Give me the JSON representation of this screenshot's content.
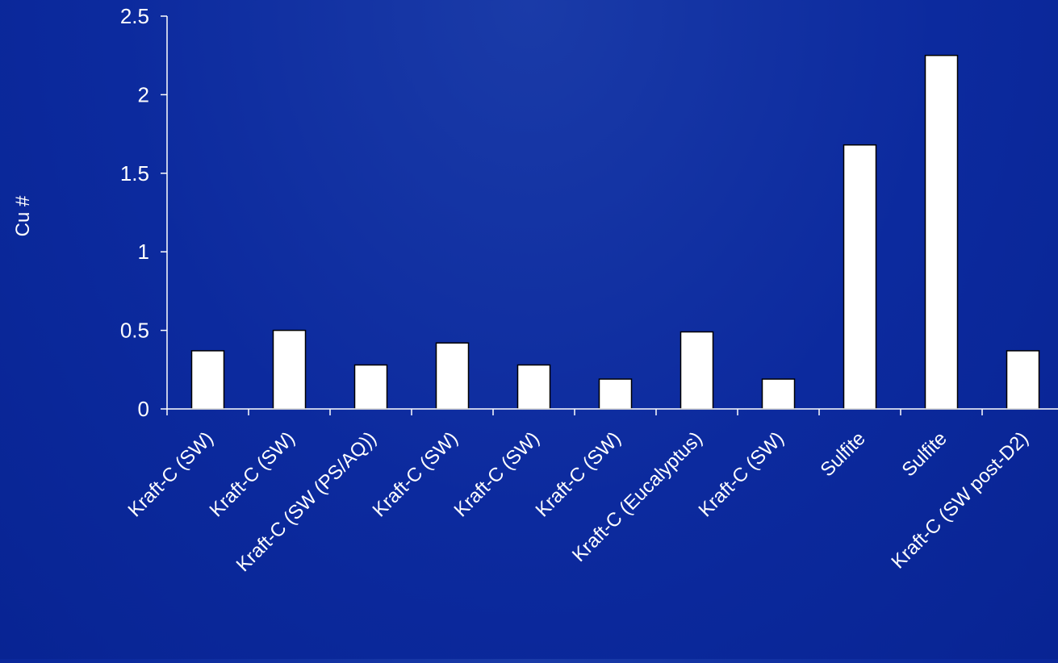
{
  "colors": {
    "background": "#0b2a9c",
    "bar_fill": "#ffffff",
    "bar_stroke": "#000000",
    "axis": "#ffffff",
    "text": "#ffffff"
  },
  "chart_data": {
    "type": "bar",
    "title": "",
    "xlabel": "",
    "ylabel": "Cu #",
    "ylim": [
      0,
      2.5
    ],
    "yticks": [
      "0",
      "0.5",
      "1",
      "1.5",
      "2",
      "2.5"
    ],
    "ytick_values": [
      0,
      0.5,
      1,
      1.5,
      2,
      2.5
    ],
    "grid": false,
    "legend": "none",
    "categories": [
      "Kraft-C (SW)",
      "Kraft-C (SW)",
      "Kraft-C (SW (PS/AQ))",
      "Kraft-C (SW)",
      "Kraft-C (SW)",
      "Kraft-C (SW)",
      "Kraft-C (Eucalyptus)",
      "Kraft-C (SW)",
      "Sulfite",
      "Sulfite",
      "Kraft-C (SW post-D2)"
    ],
    "values": [
      0.37,
      0.5,
      0.28,
      0.42,
      0.28,
      0.19,
      0.49,
      0.19,
      1.68,
      2.25,
      0.37
    ]
  }
}
